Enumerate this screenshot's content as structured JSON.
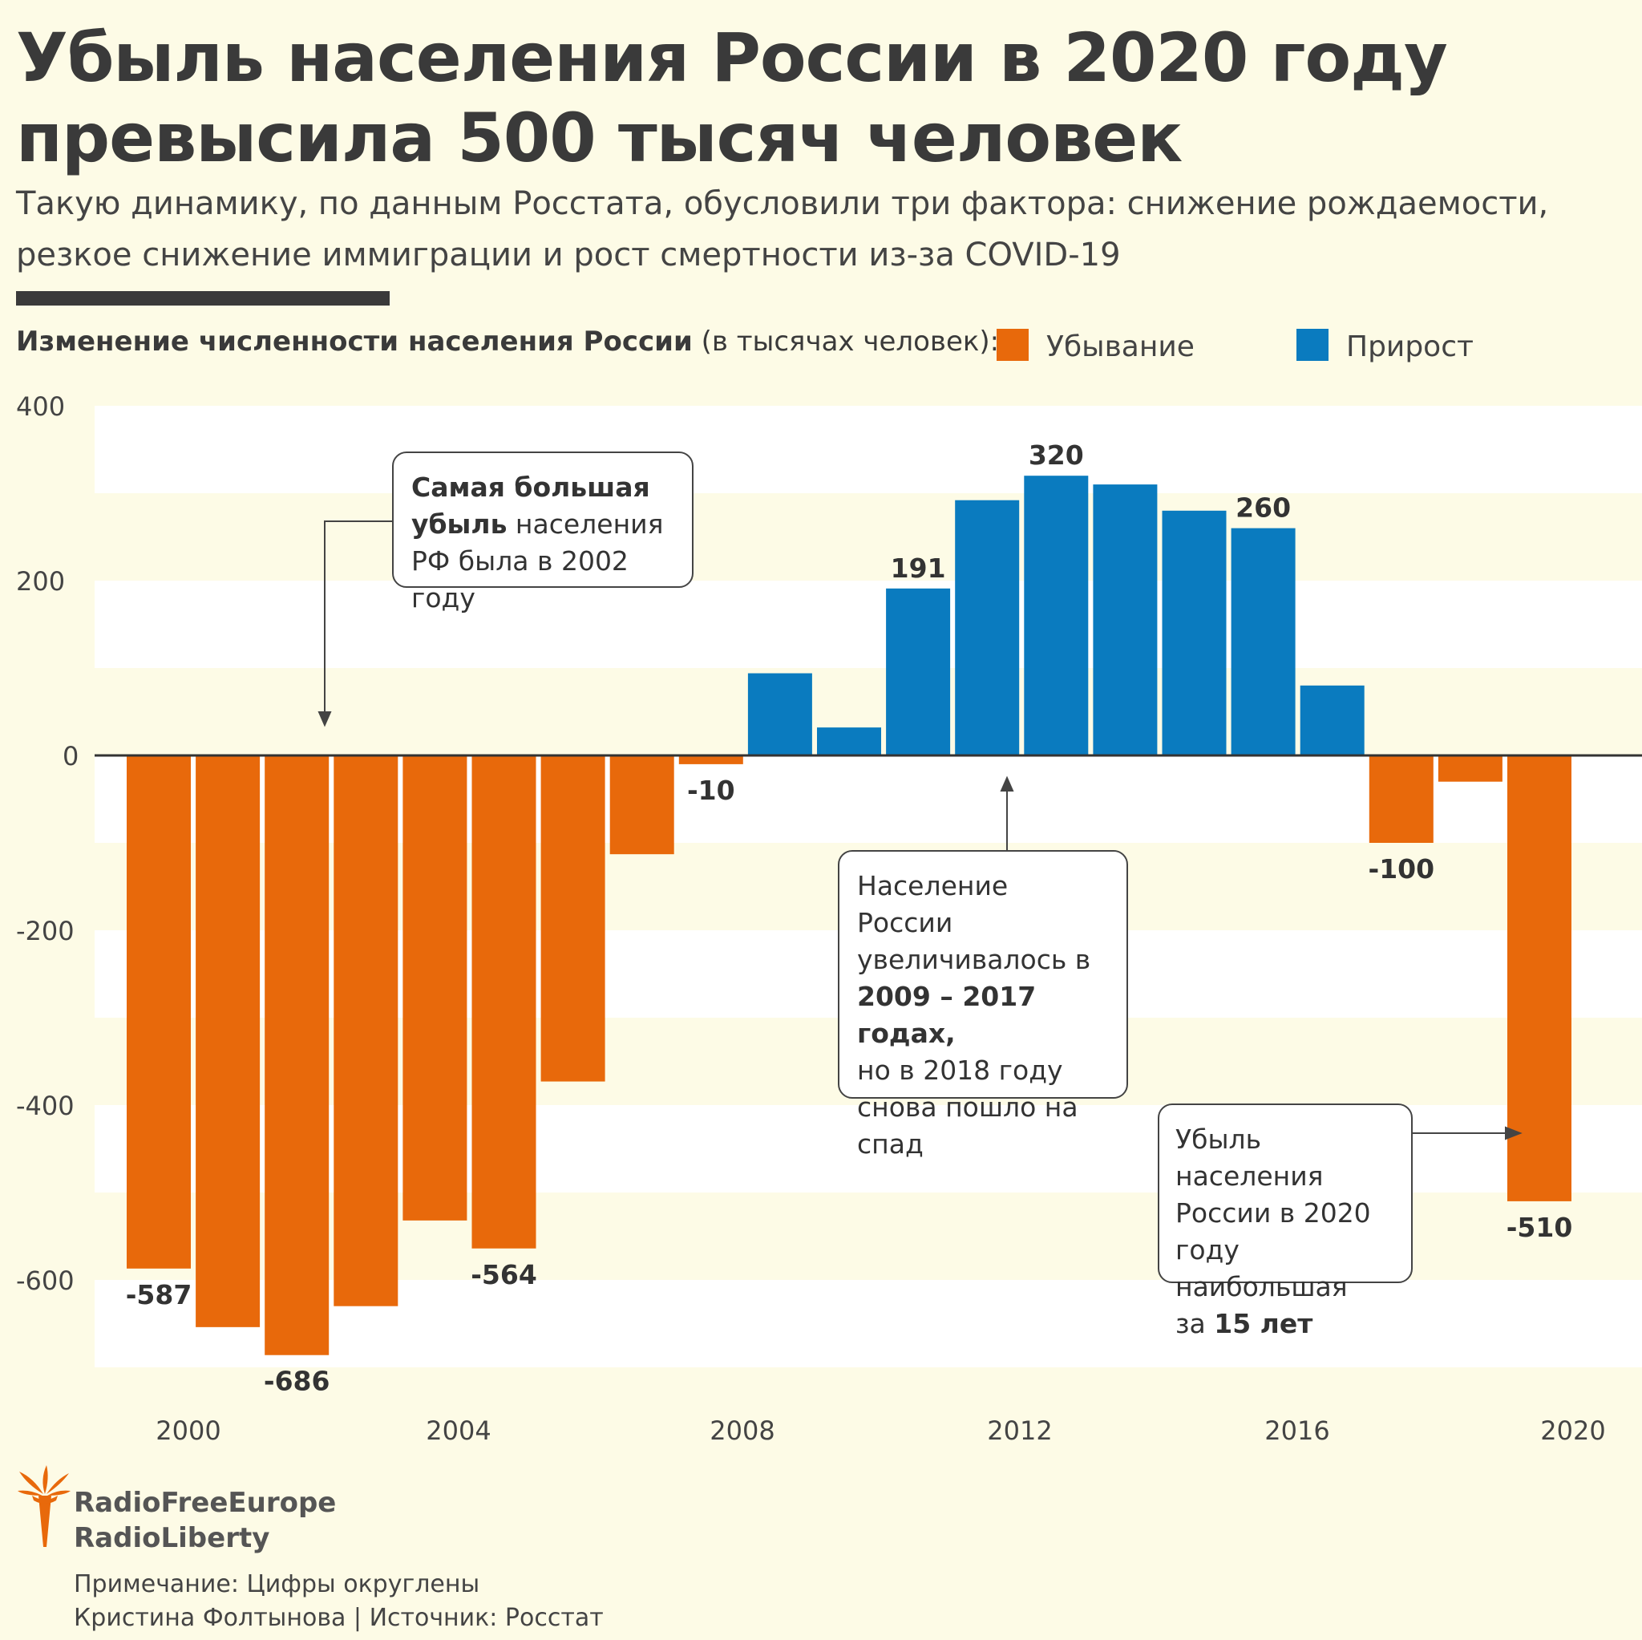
{
  "title_line1": "Убыль населения России в 2020 году",
  "title_line2": "превысила 500 тысяч человек",
  "subtitle_line1": "Такую динамику, по данным Росстата, обусловили три фактора: снижение рождаемости,",
  "subtitle_line2": "резкое снижение иммиграции и рост смертности из-за COVID-19",
  "legend": {
    "heading_bold": "Изменение численности населения России",
    "heading_rest": " (в тысячах человек):",
    "decline": "Убывание",
    "growth": "Прирост"
  },
  "colors": {
    "decline": "#e8690b",
    "growth": "#0a7bbf",
    "band": "#ffffff",
    "background": "#fdfbe6"
  },
  "chart_data": {
    "type": "bar",
    "x": [
      2000,
      2001,
      2002,
      2003,
      2004,
      2005,
      2006,
      2007,
      2008,
      2009,
      2010,
      2011,
      2012,
      2013,
      2014,
      2015,
      2016,
      2017,
      2018,
      2019,
      2020
    ],
    "values": [
      -587,
      -654,
      -686,
      -630,
      -532,
      -564,
      -373,
      -113,
      -10,
      94,
      32,
      191,
      292,
      320,
      310,
      280,
      260,
      80,
      -100,
      -30,
      -510
    ],
    "value_labels": {
      "2000": "-587",
      "2002": "-686",
      "2005": "-564",
      "2008": "-10",
      "2011": "191",
      "2013": "320",
      "2016": "260",
      "2018": "-100",
      "2020": "-510"
    },
    "ylim": [
      -700,
      400
    ],
    "y_ticks": [
      "400",
      "200",
      "0",
      "-200",
      "-400",
      "-600"
    ],
    "x_ticks": [
      "2000",
      "2004",
      "2008",
      "2012",
      "2016",
      "2020"
    ],
    "legend_placement": "top"
  },
  "annotations": {
    "a2002_bold": "Самая большая",
    "a2002_bold2": "убыль",
    "a2002_rest": " населения",
    "a2002_line3": "РФ была в 2002 году",
    "a2009_l1": "Население России",
    "a2009_l2": "увеличивалось в",
    "a2009_l3": "2009 – 2017 годах,",
    "a2009_l4": "но в 2018 году",
    "a2009_l5": "снова пошло на",
    "a2009_l6": "спад",
    "a2020_l1": "Убыль населения",
    "a2020_l2": "России в 2020",
    "a2020_l3": "году наибольшая",
    "a2020_l4a": "за ",
    "a2020_l4b": "15 лет"
  },
  "logo": {
    "line1": "RadioFreeEurope",
    "line2": "RadioLiberty"
  },
  "footer": {
    "note": "Примечание: Цифры округлены",
    "credit": "Кристина Фолтынова | Источник: Росстат"
  }
}
